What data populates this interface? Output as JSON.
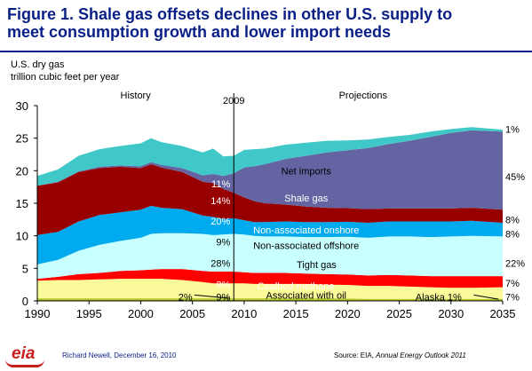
{
  "header": {
    "title_line1": "Figure 1.  Shale gas offsets declines in other U.S. supply to",
    "title_line2": "meet consumption growth and lower import needs"
  },
  "axis": {
    "ylabel_line1": "U.S. dry gas",
    "ylabel_line2": "trillion cubic feet per year"
  },
  "footer": {
    "author": "Richard Newell, December 16, 2010",
    "source_prefix": "Source:  EIA, ",
    "source_title": "Annual Energy Outlook 2011"
  },
  "logo": {
    "text": "eia"
  },
  "chart_data": {
    "type": "area",
    "stacked": true,
    "xlim": [
      1990,
      2035
    ],
    "ylim": [
      0,
      30
    ],
    "xticks": [
      1990,
      1995,
      2000,
      2005,
      2010,
      2015,
      2020,
      2025,
      2030,
      2035
    ],
    "yticks": [
      0,
      5,
      10,
      15,
      20,
      25,
      30
    ],
    "x": [
      1990,
      1992,
      1994,
      1996,
      1998,
      2000,
      2001,
      2002,
      2004,
      2006,
      2007,
      2008,
      2009,
      2010,
      2011,
      2012,
      2014,
      2016,
      2018,
      2020,
      2022,
      2024,
      2026,
      2028,
      2030,
      2032,
      2035
    ],
    "series": [
      {
        "name": "Alaska",
        "color": "#b4c828",
        "values": [
          0.4,
          0.4,
          0.4,
          0.4,
          0.4,
          0.4,
          0.4,
          0.4,
          0.4,
          0.4,
          0.4,
          0.4,
          0.4,
          0.4,
          0.4,
          0.4,
          0.4,
          0.4,
          0.4,
          0.35,
          0.3,
          0.3,
          0.3,
          0.3,
          0.3,
          0.3,
          0.3
        ]
      },
      {
        "name": "Associated with oil",
        "color": "#fafa9a",
        "values": [
          2.7,
          2.8,
          2.8,
          2.9,
          3.0,
          3.0,
          3.0,
          3.0,
          2.8,
          2.5,
          2.3,
          2.3,
          2.3,
          2.3,
          2.2,
          2.2,
          2.2,
          2.2,
          2.1,
          2.1,
          2.0,
          2.0,
          1.9,
          1.8,
          1.7,
          1.7,
          1.8
        ]
      },
      {
        "name": "Coalbed methane",
        "color": "#ff0000",
        "values": [
          0.3,
          0.5,
          0.9,
          1.0,
          1.2,
          1.3,
          1.4,
          1.5,
          1.7,
          1.7,
          1.8,
          1.8,
          1.8,
          1.7,
          1.7,
          1.7,
          1.7,
          1.6,
          1.6,
          1.6,
          1.6,
          1.7,
          1.7,
          1.7,
          1.8,
          1.8,
          1.7
        ]
      },
      {
        "name": "Tight gas",
        "color": "#c8ffff",
        "values": [
          2.2,
          2.6,
          3.6,
          4.3,
          4.6,
          5.0,
          5.5,
          5.5,
          5.5,
          5.7,
          5.6,
          5.7,
          5.8,
          5.8,
          5.7,
          5.6,
          5.6,
          5.6,
          5.7,
          5.8,
          5.8,
          5.9,
          6.0,
          6.0,
          6.1,
          6.2,
          6.1
        ]
      },
      {
        "name": "Non-associated offshore",
        "color": "#00aaee",
        "values": [
          4.5,
          4.3,
          4.5,
          4.6,
          4.4,
          4.3,
          4.3,
          3.9,
          3.7,
          2.8,
          2.8,
          2.4,
          2.4,
          2.2,
          2.1,
          2.2,
          2.3,
          2.3,
          2.3,
          2.3,
          2.3,
          2.3,
          2.3,
          2.4,
          2.3,
          2.3,
          2.1
        ]
      },
      {
        "name": "Non-associated onshore",
        "color": "#980000",
        "values": [
          7.6,
          7.6,
          7.6,
          7.2,
          7.0,
          6.4,
          6.4,
          6.2,
          5.7,
          5.2,
          5.2,
          4.6,
          3.9,
          3.5,
          3.2,
          2.9,
          2.6,
          2.4,
          2.2,
          2.1,
          2.1,
          2.0,
          2.0,
          2.0,
          2.0,
          2.0,
          2.0
        ]
      },
      {
        "name": "Shale gas",
        "color": "#6464a2",
        "values": [
          0.0,
          0.1,
          0.1,
          0.2,
          0.2,
          0.3,
          0.3,
          0.4,
          0.6,
          1.0,
          1.4,
          2.0,
          3.0,
          4.6,
          5.4,
          6.0,
          7.0,
          7.8,
          8.5,
          8.9,
          9.4,
          9.9,
          10.4,
          11.0,
          11.6,
          11.9,
          12.0
        ]
      },
      {
        "name": "Net imports",
        "color": "#40c8c8",
        "values": [
          1.5,
          1.9,
          2.4,
          2.7,
          3.0,
          3.5,
          3.7,
          3.5,
          3.4,
          3.5,
          3.9,
          3.0,
          2.7,
          2.7,
          2.6,
          2.4,
          2.2,
          2.0,
          1.8,
          1.5,
          1.3,
          1.1,
          0.9,
          0.8,
          0.6,
          0.5,
          0.3
        ]
      }
    ],
    "history_label": "History",
    "projections_label": "Projections",
    "divider_year": 2009,
    "divider_label": "2009",
    "series_labels": [
      {
        "text": "Net imports",
        "color": "#000000",
        "x": 2016,
        "y": 20.0
      },
      {
        "text": "Shale gas",
        "color": "#ffffff",
        "x": 2016,
        "y": 15.8
      },
      {
        "text": "Non-associated onshore",
        "color": "#ffffff",
        "x": 2016,
        "y": 10.9
      },
      {
        "text": "Non-associated offshore",
        "color": "#000000",
        "x": 2016,
        "y": 8.5
      },
      {
        "text": "Tight gas",
        "color": "#000000",
        "x": 2017,
        "y": 5.6
      },
      {
        "text": "Coalbed methane",
        "color": "#ffffff",
        "x": 2015,
        "y": 2.3
      },
      {
        "text": "Associated with oil",
        "color": "#000000",
        "x": 2016,
        "y": 0.9
      },
      {
        "text": "Alaska 1%",
        "color": "#000000",
        "x": 2028.8,
        "y": 0.6
      }
    ],
    "pct_2009": [
      {
        "text": "11%",
        "color": "#ffffff",
        "y": 18.0
      },
      {
        "text": "14%",
        "color": "#ffffff",
        "y": 15.4
      },
      {
        "text": "20%",
        "color": "#ffffff",
        "y": 12.3
      },
      {
        "text": "9%",
        "color": "#000000",
        "y": 9.1
      },
      {
        "text": "28%",
        "color": "#000000",
        "y": 5.8
      },
      {
        "text": "8%",
        "color": "#ffffff",
        "y": 2.5
      },
      {
        "text": "9%",
        "color": "#000000",
        "y": 0.6
      },
      {
        "text": "2%",
        "color": "#000000",
        "y": 0.6
      }
    ],
    "pct_2035": [
      {
        "text": "1%",
        "y": 26.4
      },
      {
        "text": "45%",
        "y": 19.1
      },
      {
        "text": "8%",
        "y": 12.5
      },
      {
        "text": "8%",
        "y": 10.3
      },
      {
        "text": "22%",
        "y": 5.8
      },
      {
        "text": "7%",
        "y": 2.7
      },
      {
        "text": "7%",
        "y": 0.6
      }
    ]
  }
}
